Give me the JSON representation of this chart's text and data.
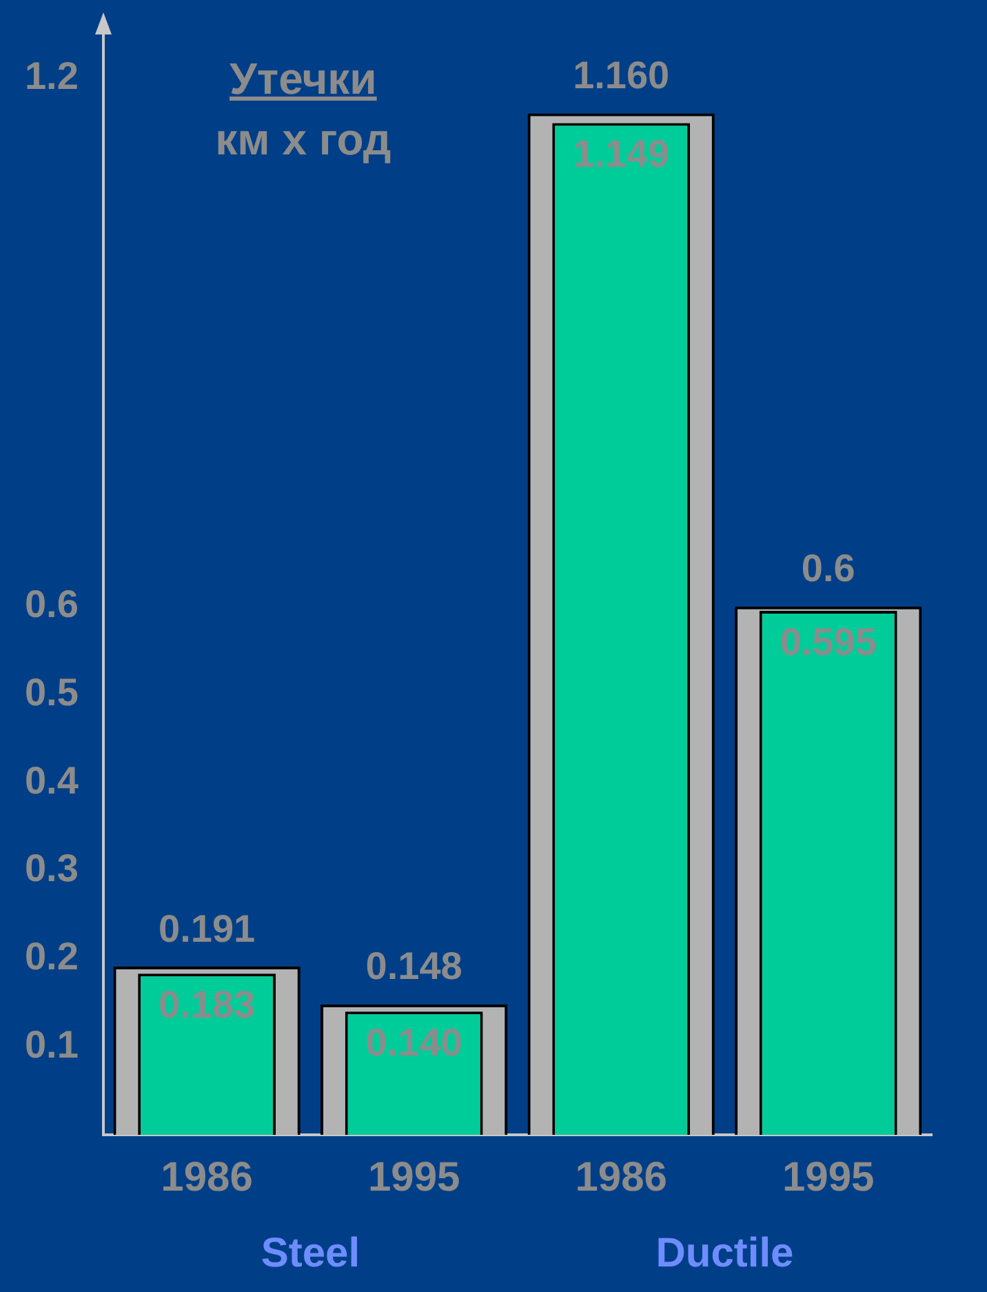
{
  "chart_data": {
    "type": "bar",
    "title": "Утечки",
    "subtitle": "км х год",
    "categories": [
      "1986",
      "1995",
      "1986",
      "1995"
    ],
    "series": [
      {
        "color": "#b3b3b3",
        "values": [
          0.191,
          0.148,
          1.16,
          0.6
        ],
        "value_labels": [
          "0.191",
          "0.148",
          "1.160",
          "0.6"
        ]
      },
      {
        "color": "#00cc99",
        "values": [
          0.183,
          0.14,
          1.149,
          0.595
        ],
        "value_labels": [
          "0.183",
          "0.140",
          "1.149",
          "0.595"
        ]
      }
    ],
    "ylim": [
      0,
      1.25
    ],
    "yticks": [
      0.1,
      0.2,
      0.3,
      0.4,
      0.5,
      0.6,
      1.2
    ],
    "grid": false,
    "legend": false,
    "annotations": [
      "Steel",
      "Ductile"
    ]
  }
}
